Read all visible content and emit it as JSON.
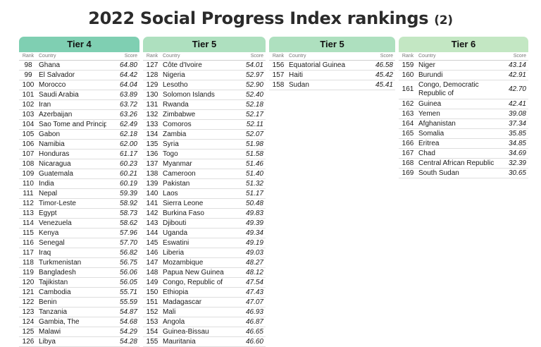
{
  "title": "2022 Social Progress Index rankings",
  "title_suffix": "(2)",
  "colors": {
    "tier4": "#7fcfb2",
    "tier5": "#aee0bf",
    "tier6": "#c3e7c3"
  },
  "columns": {
    "rank": "Rank",
    "country": "Country",
    "score": "Score"
  },
  "tiers": [
    {
      "label": "Tier 4",
      "rows": [
        {
          "rank": "98",
          "country": "Ghana",
          "score": "64.80"
        },
        {
          "rank": "99",
          "country": "El Salvador",
          "score": "64.42"
        },
        {
          "rank": "100",
          "country": "Morocco",
          "score": "64.04"
        },
        {
          "rank": "101",
          "country": "Saudi Arabia",
          "score": "63.89"
        },
        {
          "rank": "102",
          "country": "Iran",
          "score": "63.72"
        },
        {
          "rank": "103",
          "country": "Azerbaijan",
          "score": "63.26"
        },
        {
          "rank": "104",
          "country": "Sao Tome and Principe",
          "score": "62.49"
        },
        {
          "rank": "105",
          "country": "Gabon",
          "score": "62.18"
        },
        {
          "rank": "106",
          "country": "Namibia",
          "score": "62.00"
        },
        {
          "rank": "107",
          "country": "Honduras",
          "score": "61.17"
        },
        {
          "rank": "108",
          "country": "Nicaragua",
          "score": "60.23"
        },
        {
          "rank": "109",
          "country": "Guatemala",
          "score": "60.21"
        },
        {
          "rank": "110",
          "country": "India",
          "score": "60.19"
        },
        {
          "rank": "111",
          "country": "Nepal",
          "score": "59.39"
        },
        {
          "rank": "112",
          "country": "Timor-Leste",
          "score": "58.92"
        },
        {
          "rank": "113",
          "country": "Egypt",
          "score": "58.73"
        },
        {
          "rank": "114",
          "country": "Venezuela",
          "score": "58.62"
        },
        {
          "rank": "115",
          "country": "Kenya",
          "score": "57.96"
        },
        {
          "rank": "116",
          "country": "Senegal",
          "score": "57.70"
        },
        {
          "rank": "117",
          "country": "Iraq",
          "score": "56.82"
        },
        {
          "rank": "118",
          "country": "Turkmenistan",
          "score": "56.75"
        },
        {
          "rank": "119",
          "country": "Bangladesh",
          "score": "56.06"
        },
        {
          "rank": "120",
          "country": "Tajikistan",
          "score": "56.05"
        },
        {
          "rank": "121",
          "country": "Cambodia",
          "score": "55.71"
        },
        {
          "rank": "122",
          "country": "Benin",
          "score": "55.59"
        },
        {
          "rank": "123",
          "country": "Tanzania",
          "score": "54.87"
        },
        {
          "rank": "124",
          "country": "Gambia, The",
          "score": "54.68"
        },
        {
          "rank": "125",
          "country": "Malawi",
          "score": "54.29"
        },
        {
          "rank": "126",
          "country": "Libya",
          "score": "54.28"
        }
      ]
    },
    {
      "label": "Tier 5",
      "rows": [
        {
          "rank": "127",
          "country": "Côte d'Ivoire",
          "score": "54.01"
        },
        {
          "rank": "128",
          "country": "Nigeria",
          "score": "52.97"
        },
        {
          "rank": "129",
          "country": "Lesotho",
          "score": "52.90"
        },
        {
          "rank": "130",
          "country": "Solomon Islands",
          "score": "52.40"
        },
        {
          "rank": "131",
          "country": "Rwanda",
          "score": "52.18"
        },
        {
          "rank": "132",
          "country": "Zimbabwe",
          "score": "52.17"
        },
        {
          "rank": "133",
          "country": "Comoros",
          "score": "52.11"
        },
        {
          "rank": "134",
          "country": "Zambia",
          "score": "52.07"
        },
        {
          "rank": "135",
          "country": "Syria",
          "score": "51.98"
        },
        {
          "rank": "136",
          "country": "Togo",
          "score": "51.58"
        },
        {
          "rank": "137",
          "country": "Myanmar",
          "score": "51.46"
        },
        {
          "rank": "138",
          "country": "Cameroon",
          "score": "51.40"
        },
        {
          "rank": "139",
          "country": "Pakistan",
          "score": "51.32"
        },
        {
          "rank": "140",
          "country": "Laos",
          "score": "51.17"
        },
        {
          "rank": "141",
          "country": "Sierra Leone",
          "score": "50.48"
        },
        {
          "rank": "142",
          "country": "Burkina Faso",
          "score": "49.83"
        },
        {
          "rank": "143",
          "country": "Djibouti",
          "score": "49.39"
        },
        {
          "rank": "144",
          "country": "Uganda",
          "score": "49.34"
        },
        {
          "rank": "145",
          "country": "Eswatini",
          "score": "49.19"
        },
        {
          "rank": "146",
          "country": "Liberia",
          "score": "49.03"
        },
        {
          "rank": "147",
          "country": "Mozambique",
          "score": "48.27"
        },
        {
          "rank": "148",
          "country": "Papua New Guinea",
          "score": "48.12"
        },
        {
          "rank": "149",
          "country": "Congo, Republic of",
          "score": "47.54"
        },
        {
          "rank": "150",
          "country": "Ethiopia",
          "score": "47.43"
        },
        {
          "rank": "151",
          "country": "Madagascar",
          "score": "47.07"
        },
        {
          "rank": "152",
          "country": "Mali",
          "score": "46.93"
        },
        {
          "rank": "153",
          "country": "Angola",
          "score": "46.87"
        },
        {
          "rank": "154",
          "country": "Guinea-Bissau",
          "score": "46.65"
        },
        {
          "rank": "155",
          "country": "Mauritania",
          "score": "46.60"
        }
      ]
    },
    {
      "label": "Tier 5",
      "rows": [
        {
          "rank": "156",
          "country": "Equatorial Guinea",
          "score": "46.58"
        },
        {
          "rank": "157",
          "country": "Haiti",
          "score": "45.42"
        },
        {
          "rank": "158",
          "country": "Sudan",
          "score": "45.41"
        }
      ]
    },
    {
      "label": "Tier 6",
      "rows": [
        {
          "rank": "159",
          "country": "Niger",
          "score": "43.14"
        },
        {
          "rank": "160",
          "country": "Burundi",
          "score": "42.91"
        },
        {
          "rank": "161",
          "country": "Congo, Democratic Republic of",
          "score": "42.70",
          "tall": true
        },
        {
          "rank": "162",
          "country": "Guinea",
          "score": "42.41"
        },
        {
          "rank": "163",
          "country": "Yemen",
          "score": "39.08"
        },
        {
          "rank": "164",
          "country": "Afghanistan",
          "score": "37.34"
        },
        {
          "rank": "165",
          "country": "Somalia",
          "score": "35.85"
        },
        {
          "rank": "166",
          "country": "Eritrea",
          "score": "34.85"
        },
        {
          "rank": "167",
          "country": "Chad",
          "score": "34.69"
        },
        {
          "rank": "168",
          "country": "Central African Republic",
          "score": "32.39"
        },
        {
          "rank": "169",
          "country": "South Sudan",
          "score": "30.65"
        }
      ]
    }
  ]
}
